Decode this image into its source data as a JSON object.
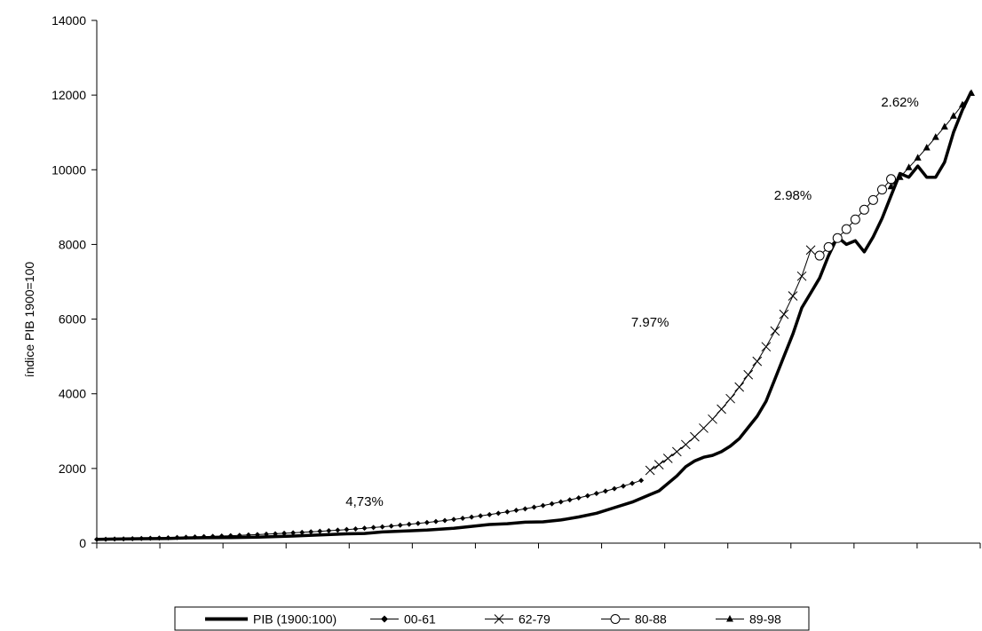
{
  "chart_data": {
    "type": "line",
    "ylabel": "índice PIB 1900=100",
    "xlabel": "",
    "title": "",
    "x_start": 1900,
    "x_end": 1998,
    "ylim": [
      0,
      14000
    ],
    "yticks": [
      0,
      2000,
      4000,
      6000,
      8000,
      10000,
      12000,
      14000
    ],
    "x_gridlines": false,
    "y_gridlines": false,
    "legend_position": "bottom",
    "annotations": [
      {
        "text": "4,73%",
        "x": 1930,
        "y": 1000
      },
      {
        "text": "7.97%",
        "x": 1962,
        "y": 5800
      },
      {
        "text": "2.98%",
        "x": 1978,
        "y": 9200
      },
      {
        "text": "2.62%",
        "x": 1990,
        "y": 11700
      }
    ],
    "series": [
      {
        "name": "PIB (1900:100)",
        "marker": "none",
        "points": [
          [
            1900,
            100
          ],
          [
            1902,
            110
          ],
          [
            1905,
            120
          ],
          [
            1908,
            125
          ],
          [
            1910,
            140
          ],
          [
            1912,
            145
          ],
          [
            1915,
            150
          ],
          [
            1918,
            160
          ],
          [
            1920,
            175
          ],
          [
            1922,
            190
          ],
          [
            1925,
            220
          ],
          [
            1928,
            250
          ],
          [
            1930,
            260
          ],
          [
            1932,
            300
          ],
          [
            1935,
            330
          ],
          [
            1937,
            350
          ],
          [
            1940,
            400
          ],
          [
            1942,
            450
          ],
          [
            1944,
            500
          ],
          [
            1946,
            520
          ],
          [
            1948,
            560
          ],
          [
            1950,
            570
          ],
          [
            1952,
            620
          ],
          [
            1954,
            700
          ],
          [
            1956,
            800
          ],
          [
            1958,
            950
          ],
          [
            1960,
            1100
          ],
          [
            1962,
            1300
          ],
          [
            1963,
            1400
          ],
          [
            1964,
            1600
          ],
          [
            1965,
            1800
          ],
          [
            1966,
            2050
          ],
          [
            1967,
            2200
          ],
          [
            1968,
            2300
          ],
          [
            1969,
            2350
          ],
          [
            1970,
            2450
          ],
          [
            1971,
            2600
          ],
          [
            1972,
            2800
          ],
          [
            1973,
            3100
          ],
          [
            1974,
            3400
          ],
          [
            1975,
            3800
          ],
          [
            1976,
            4400
          ],
          [
            1977,
            5000
          ],
          [
            1978,
            5600
          ],
          [
            1979,
            6300
          ],
          [
            1980,
            6700
          ],
          [
            1981,
            7100
          ],
          [
            1982,
            7700
          ],
          [
            1983,
            8200
          ],
          [
            1984,
            8000
          ],
          [
            1985,
            8100
          ],
          [
            1986,
            7800
          ],
          [
            1987,
            8200
          ],
          [
            1988,
            8700
          ],
          [
            1989,
            9300
          ],
          [
            1990,
            9900
          ],
          [
            1991,
            9800
          ],
          [
            1992,
            10100
          ],
          [
            1993,
            9800
          ],
          [
            1994,
            9800
          ],
          [
            1995,
            10200
          ],
          [
            1996,
            11000
          ],
          [
            1997,
            11600
          ],
          [
            1998,
            12100
          ]
        ]
      },
      {
        "name": "00-61",
        "marker": "diamond",
        "points": [
          [
            1900,
            100
          ],
          [
            1901,
            105
          ],
          [
            1902,
            109
          ],
          [
            1903,
            114
          ],
          [
            1904,
            120
          ],
          [
            1905,
            126
          ],
          [
            1906,
            132
          ],
          [
            1907,
            138
          ],
          [
            1908,
            144
          ],
          [
            1909,
            151
          ],
          [
            1910,
            158
          ],
          [
            1911,
            166
          ],
          [
            1912,
            174
          ],
          [
            1913,
            182
          ],
          [
            1914,
            190
          ],
          [
            1915,
            199
          ],
          [
            1916,
            209
          ],
          [
            1917,
            219
          ],
          [
            1918,
            229
          ],
          [
            1919,
            240
          ],
          [
            1920,
            251
          ],
          [
            1921,
            263
          ],
          [
            1922,
            276
          ],
          [
            1923,
            289
          ],
          [
            1924,
            302
          ],
          [
            1925,
            317
          ],
          [
            1926,
            332
          ],
          [
            1927,
            348
          ],
          [
            1928,
            364
          ],
          [
            1929,
            381
          ],
          [
            1930,
            400
          ],
          [
            1931,
            419
          ],
          [
            1932,
            438
          ],
          [
            1933,
            459
          ],
          [
            1934,
            481
          ],
          [
            1935,
            504
          ],
          [
            1936,
            528
          ],
          [
            1937,
            553
          ],
          [
            1938,
            579
          ],
          [
            1939,
            606
          ],
          [
            1940,
            635
          ],
          [
            1941,
            665
          ],
          [
            1942,
            697
          ],
          [
            1943,
            730
          ],
          [
            1944,
            764
          ],
          [
            1945,
            800
          ],
          [
            1946,
            838
          ],
          [
            1947,
            878
          ],
          [
            1948,
            919
          ],
          [
            1949,
            963
          ],
          [
            1950,
            1008
          ],
          [
            1951,
            1056
          ],
          [
            1952,
            1106
          ],
          [
            1953,
            1158
          ],
          [
            1954,
            1213
          ],
          [
            1955,
            1270
          ],
          [
            1956,
            1330
          ],
          [
            1957,
            1393
          ],
          [
            1958,
            1459
          ],
          [
            1959,
            1528
          ],
          [
            1960,
            1600
          ],
          [
            1961,
            1680
          ]
        ]
      },
      {
        "name": "62-79",
        "marker": "x",
        "points": [
          [
            1962,
            1950
          ],
          [
            1963,
            2100
          ],
          [
            1964,
            2270
          ],
          [
            1965,
            2450
          ],
          [
            1966,
            2640
          ],
          [
            1967,
            2850
          ],
          [
            1968,
            3080
          ],
          [
            1969,
            3320
          ],
          [
            1970,
            3590
          ],
          [
            1971,
            3870
          ],
          [
            1972,
            4180
          ],
          [
            1973,
            4510
          ],
          [
            1974,
            4870
          ],
          [
            1975,
            5260
          ],
          [
            1976,
            5680
          ],
          [
            1977,
            6130
          ],
          [
            1978,
            6620
          ],
          [
            1979,
            7150
          ],
          [
            1980,
            7850
          ]
        ]
      },
      {
        "name": "80-88",
        "marker": "circle",
        "points": [
          [
            1981,
            7700
          ],
          [
            1982,
            7930
          ],
          [
            1983,
            8170
          ],
          [
            1984,
            8410
          ],
          [
            1985,
            8670
          ],
          [
            1986,
            8930
          ],
          [
            1987,
            9190
          ],
          [
            1988,
            9470
          ],
          [
            1989,
            9750
          ]
        ]
      },
      {
        "name": "89-98",
        "marker": "triangle",
        "points": [
          [
            1989,
            9550
          ],
          [
            1990,
            9800
          ],
          [
            1991,
            10060
          ],
          [
            1992,
            10320
          ],
          [
            1993,
            10590
          ],
          [
            1994,
            10870
          ],
          [
            1995,
            11150
          ],
          [
            1996,
            11440
          ],
          [
            1997,
            11740
          ],
          [
            1998,
            12050
          ]
        ]
      }
    ]
  }
}
